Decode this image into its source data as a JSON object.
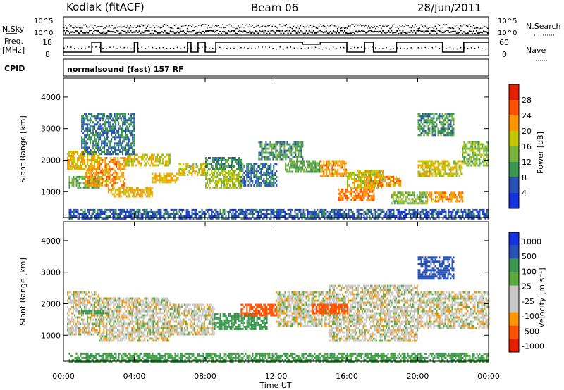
{
  "header": {
    "station": "Kodiak (fitACF)",
    "beam": "Beam 06",
    "date": "28/Jun/2011"
  },
  "status_panel": {
    "nsky_label": "N.Sky",
    "nsearch_label": "N.Search",
    "freq_label": "Freq.",
    "freq_unit": "[MHz]",
    "nave_label": "Nave",
    "cpid_label": "CPID",
    "cpid_text": "normalsound (fast) 157 RF",
    "noise_ticks": [
      "10^5",
      "10^0"
    ],
    "freq_ticks": [
      "18",
      "8"
    ],
    "nave_ticks": [
      "60",
      "0"
    ]
  },
  "colors": {
    "power": [
      "#1432dc",
      "#2850b4",
      "#3c9650",
      "#78b43c",
      "#c8c800",
      "#ff9600",
      "#ff5000",
      "#e61e00"
    ],
    "velocity": [
      "#e61e00",
      "#ff5000",
      "#ff9600",
      "#c8c8c8",
      "#c8c8c8",
      "#5aaa3c",
      "#3c9650",
      "#2850b4",
      "#1432dc"
    ]
  },
  "chart_data": [
    {
      "type": "heatmap",
      "name": "Power",
      "ylabel": "Slant Range [km]",
      "xlabel": "Time UT",
      "xticks": [
        "00:00",
        "04:00",
        "08:00",
        "12:00",
        "16:00",
        "20:00",
        "00:00"
      ],
      "yticks": [
        "1000",
        "2000",
        "3000",
        "4000"
      ],
      "ylim": [
        180,
        4600
      ],
      "colorbar_label": "Power [dB]",
      "colorbar_ticks": [
        "4",
        "8",
        "12",
        "16",
        "20",
        "24",
        "28"
      ],
      "clim": [
        0,
        32
      ],
      "bands": [
        {
          "t0": 0.2,
          "t1": 2.0,
          "r0": 1700,
          "r1": 2300,
          "p": 20
        },
        {
          "t0": 2.0,
          "t1": 3.5,
          "r0": 1700,
          "r1": 2100,
          "p": 22
        },
        {
          "t0": 3.5,
          "t1": 6.0,
          "r0": 1800,
          "r1": 2200,
          "p": 18
        },
        {
          "t0": 0.3,
          "t1": 2.0,
          "r0": 1100,
          "r1": 1500,
          "p": 12
        },
        {
          "t0": 1.2,
          "t1": 3.5,
          "r0": 1200,
          "r1": 1700,
          "p": 22
        },
        {
          "t0": 2.5,
          "t1": 5.0,
          "r0": 850,
          "r1": 1150,
          "p": 20
        },
        {
          "t0": 5.0,
          "t1": 6.5,
          "r0": 1300,
          "r1": 1600,
          "p": 20
        },
        {
          "t0": 6.5,
          "t1": 8.0,
          "r0": 1500,
          "r1": 1900,
          "p": 18
        },
        {
          "t0": 8.0,
          "t1": 10.0,
          "r0": 1100,
          "r1": 1700,
          "p": 16
        },
        {
          "t0": 8.0,
          "t1": 10.0,
          "r0": 1700,
          "r1": 2100,
          "p": 10
        },
        {
          "t0": 10.0,
          "t1": 12.0,
          "r0": 1200,
          "r1": 1900,
          "p": 8
        },
        {
          "t0": 12.5,
          "t1": 14.5,
          "r0": 1600,
          "r1": 2000,
          "p": 12
        },
        {
          "t0": 14.5,
          "t1": 16.0,
          "r0": 1500,
          "r1": 2000,
          "p": 22
        },
        {
          "t0": 15.5,
          "t1": 17.5,
          "r0": 700,
          "r1": 1100,
          "p": 24
        },
        {
          "t0": 16.0,
          "t1": 18.0,
          "r0": 1100,
          "r1": 1700,
          "p": 18
        },
        {
          "t0": 17.0,
          "t1": 19.0,
          "r0": 1200,
          "r1": 1500,
          "p": 22
        },
        {
          "t0": 18.5,
          "t1": 20.5,
          "r0": 600,
          "r1": 1000,
          "p": 14
        },
        {
          "t0": 20.5,
          "t1": 22.5,
          "r0": 700,
          "r1": 1000,
          "p": 22
        },
        {
          "t0": 20.0,
          "t1": 22.5,
          "r0": 1500,
          "r1": 2000,
          "p": 18
        },
        {
          "t0": 22.5,
          "t1": 24.0,
          "r0": 1800,
          "r1": 2600,
          "p": 14
        },
        {
          "t0": 0.3,
          "t1": 24.0,
          "r0": 180,
          "r1": 450,
          "p": 6
        },
        {
          "t0": 1.0,
          "t1": 4.0,
          "r0": 2200,
          "r1": 3500,
          "p": 8
        },
        {
          "t0": 11.0,
          "t1": 13.5,
          "r0": 2000,
          "r1": 2600,
          "p": 10
        },
        {
          "t0": 20.0,
          "t1": 22.0,
          "r0": 2800,
          "r1": 3500,
          "p": 10
        }
      ]
    },
    {
      "type": "heatmap",
      "name": "Velocity",
      "ylabel": "Slant Range [km]",
      "xlabel": "Time UT",
      "xticks": [
        "00:00",
        "04:00",
        "08:00",
        "12:00",
        "16:00",
        "20:00",
        "00:00"
      ],
      "yticks": [
        "1000",
        "2000",
        "3000",
        "4000"
      ],
      "ylim": [
        180,
        4600
      ],
      "colorbar_label": "Velocity [m s⁻¹]",
      "colorbar_ticks": [
        "1000",
        "500",
        "100",
        "25",
        "-25",
        "-100",
        "-500",
        "-1000"
      ],
      "bands": [
        {
          "t0": 0.2,
          "t1": 2.0,
          "r0": 1000,
          "r1": 2400,
          "v": 0
        },
        {
          "t0": 2.0,
          "t1": 6.0,
          "r0": 800,
          "r1": 2200,
          "v": 0
        },
        {
          "t0": 6.0,
          "t1": 8.5,
          "r0": 1000,
          "r1": 2000,
          "v": 0
        },
        {
          "t0": 1.0,
          "t1": 2.5,
          "r0": 1700,
          "r1": 1800,
          "v": 300
        },
        {
          "t0": 8.5,
          "t1": 11.5,
          "r0": 1200,
          "r1": 1700,
          "v": 300
        },
        {
          "t0": 10.0,
          "t1": 12.0,
          "r0": 1600,
          "r1": 2000,
          "v": -300
        },
        {
          "t0": 12.0,
          "t1": 15.0,
          "r0": 1300,
          "r1": 2400,
          "v": 0
        },
        {
          "t0": 15.0,
          "t1": 20.0,
          "r0": 800,
          "r1": 2600,
          "v": 0
        },
        {
          "t0": 20.0,
          "t1": 24.0,
          "r0": 1200,
          "r1": 2400,
          "v": 0
        },
        {
          "t0": 0.3,
          "t1": 24.0,
          "r0": 180,
          "r1": 450,
          "v": 250
        },
        {
          "t0": 14.0,
          "t1": 16.0,
          "r0": 1700,
          "r1": 2000,
          "v": -300
        },
        {
          "t0": 20.0,
          "t1": 22.0,
          "r0": 2800,
          "r1": 3500,
          "v": 600
        }
      ]
    }
  ]
}
